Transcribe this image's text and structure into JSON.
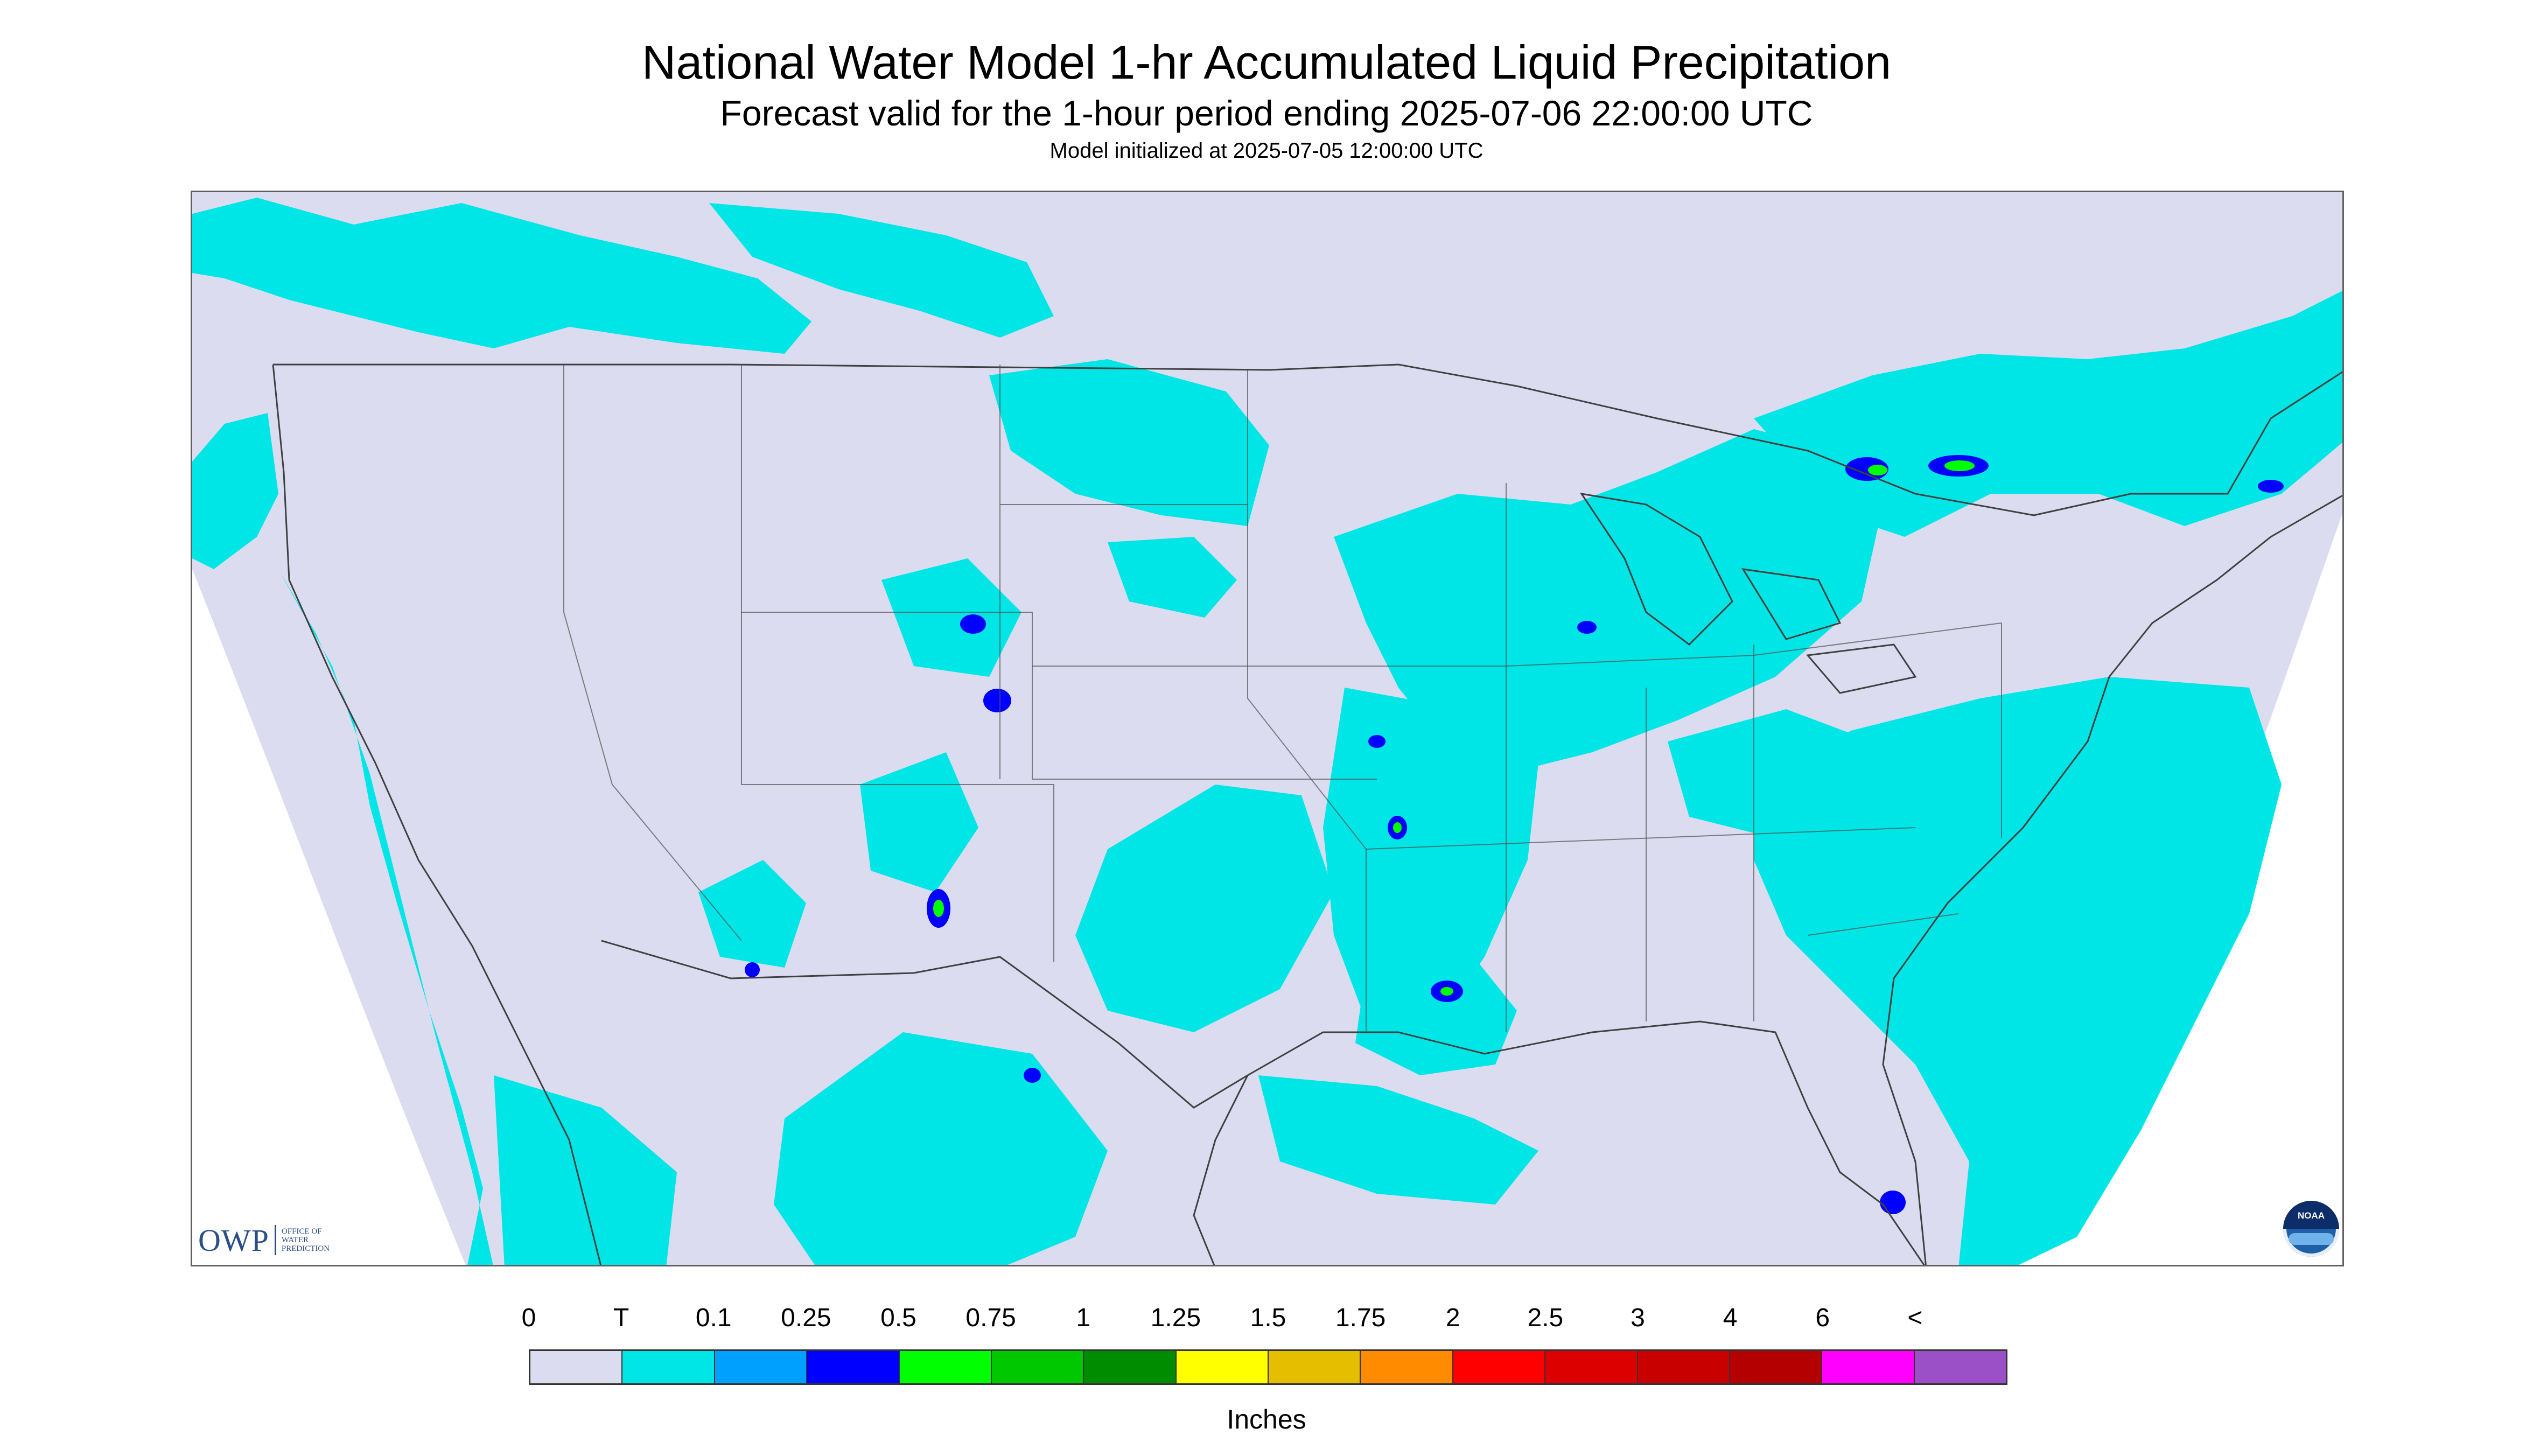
{
  "title": "National Water Model 1-hr Accumulated Liquid Precipitation",
  "subtitle": "Forecast valid for the 1-hour period ending 2025-07-06 22:00:00 UTC",
  "model_init": "Model initialized at 2025-07-05 12:00:00 UTC",
  "logos": {
    "owp_text": "OWP",
    "owp_subtext": [
      "OFFICE OF",
      "WATER",
      "PREDICTION"
    ],
    "noaa_text": "NOAA"
  },
  "map": {
    "region": "Continental United States",
    "background_color": "#dcdcf0",
    "no_data_color": "#ffffff",
    "precip_color": "#00e6e6",
    "boundary_color": "#404040"
  },
  "legend": {
    "units": "Inches",
    "labels": [
      "0",
      "T",
      "0.1",
      "0.25",
      "0.5",
      "0.75",
      "1",
      "1.25",
      "1.5",
      "1.75",
      "2",
      "2.5",
      "3",
      "4",
      "6",
      "<"
    ],
    "colors": [
      "#dcdcf0",
      "#00e6e6",
      "#00a0ff",
      "#0000ff",
      "#00ff00",
      "#00c800",
      "#008c00",
      "#ffff00",
      "#e6be00",
      "#ff8c00",
      "#ff0000",
      "#dc0000",
      "#c80000",
      "#b40000",
      "#ff00ff",
      "#9b50c8"
    ]
  }
}
